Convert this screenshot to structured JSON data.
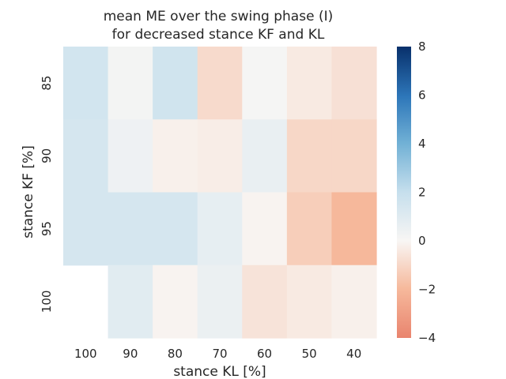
{
  "chart_data": {
    "type": "heatmap",
    "title_lines": [
      "mean ME over the swing phase (I)",
      "for decreased stance KF and KL"
    ],
    "xlabel": "stance KL [%]",
    "ylabel": "stance KF [%]",
    "x_categories": [
      "100",
      "90",
      "80",
      "70",
      "60",
      "50",
      "40"
    ],
    "y_categories": [
      "85",
      "90",
      "95",
      "100"
    ],
    "values": [
      [
        1.5,
        0.2,
        1.6,
        -0.9,
        0.1,
        -0.4,
        -0.7
      ],
      [
        1.4,
        0.4,
        -0.2,
        -0.3,
        0.6,
        -1.0,
        -1.0
      ],
      [
        1.4,
        1.4,
        1.4,
        0.7,
        -0.1,
        -1.3,
        -2.0
      ],
      [
        null,
        0.9,
        -0.1,
        0.5,
        -0.6,
        -0.4,
        -0.2
      ]
    ],
    "colorbar": {
      "range": [
        -4,
        8
      ],
      "ticks": [
        "8",
        "6",
        "4",
        "2",
        "0",
        "−2",
        "−4"
      ],
      "colormap": "RdBu"
    },
    "grid": false
  }
}
